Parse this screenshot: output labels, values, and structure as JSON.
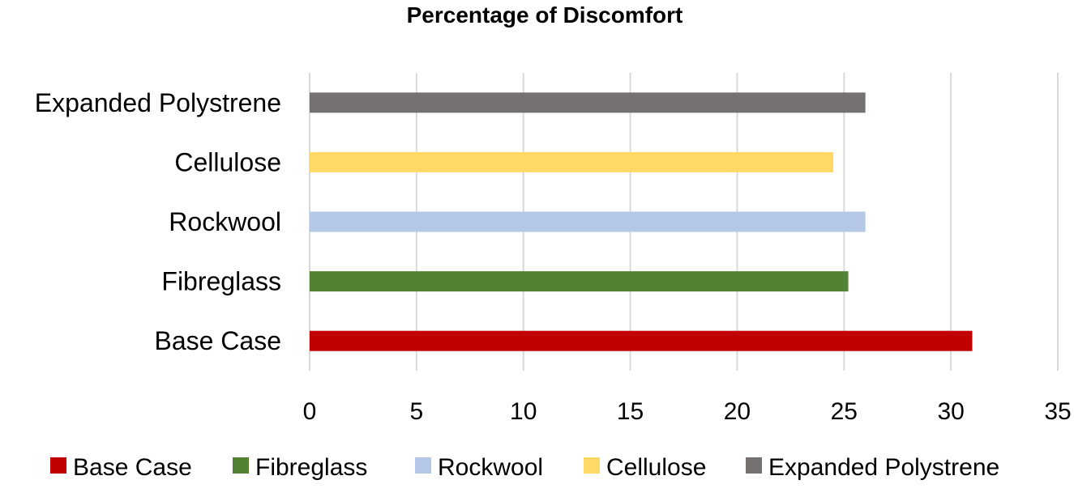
{
  "chart_data": {
    "type": "bar",
    "orientation": "horizontal",
    "title": "Percentage of Discomfort",
    "xlabel": "",
    "ylabel": "",
    "categories": [
      "Base Case",
      "Fibreglass",
      "Rockwool",
      "Cellulose",
      "Expanded Polystrene"
    ],
    "values": [
      31.0,
      25.2,
      26.0,
      24.5,
      26.0
    ],
    "colors": [
      "#c00000",
      "#548235",
      "#b4c7e7",
      "#ffd966",
      "#767171"
    ],
    "xlim": [
      0,
      35
    ],
    "xticks": [
      0,
      5,
      10,
      15,
      20,
      25,
      30,
      35
    ],
    "grid": "vertical",
    "legend": {
      "position": "bottom",
      "entries": [
        "Base Case",
        "Fibreglass",
        "Rockwool",
        "Cellulose",
        "Expanded Polystrene"
      ]
    },
    "colors_meta": {
      "gridline": "#d9d9d9",
      "axis_text": "#000000"
    }
  }
}
